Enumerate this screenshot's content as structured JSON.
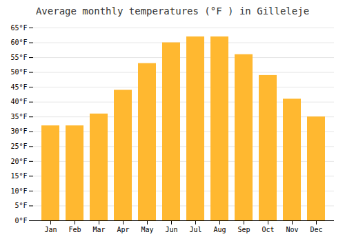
{
  "chart_data": {
    "type": "bar",
    "title": "Average monthly temperatures (°F ) in Gilleleje",
    "categories": [
      "Jan",
      "Feb",
      "Mar",
      "Apr",
      "May",
      "Jun",
      "Jul",
      "Aug",
      "Sep",
      "Oct",
      "Nov",
      "Dec"
    ],
    "values": [
      32,
      32,
      36,
      44,
      53,
      60,
      62,
      62,
      56,
      49,
      41,
      35
    ],
    "color": "#FFB830",
    "ylim": [
      0,
      65
    ],
    "yticks": [
      {
        "value": 0,
        "label": "0°F"
      },
      {
        "value": 5,
        "label": "5°F"
      },
      {
        "value": 10,
        "label": "10°F"
      },
      {
        "value": 15,
        "label": "15°F"
      },
      {
        "value": 20,
        "label": "20°F"
      },
      {
        "value": 25,
        "label": "25°F"
      },
      {
        "value": 30,
        "label": "30°F"
      },
      {
        "value": 35,
        "label": "35°F"
      },
      {
        "value": 40,
        "label": "40°F"
      },
      {
        "value": 45,
        "label": "45°F"
      },
      {
        "value": 50,
        "label": "50°F"
      },
      {
        "value": 55,
        "label": "55°F"
      },
      {
        "value": 60,
        "label": "60°F"
      },
      {
        "value": 65,
        "label": "65°F"
      }
    ],
    "grid": true
  }
}
